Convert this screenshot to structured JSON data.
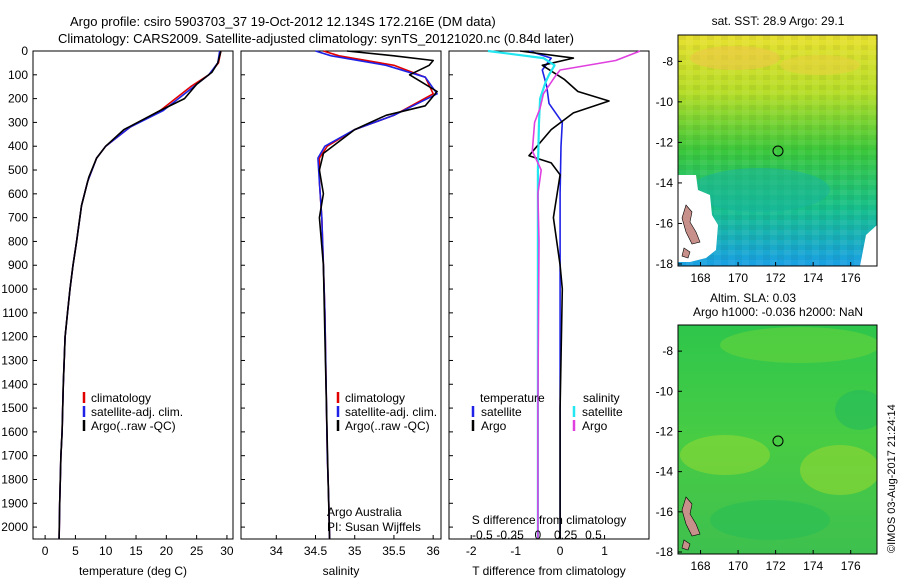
{
  "header": {
    "title_line1": "Argo profile: csiro 5903703_37 19-Oct-2012 12.134S 172.216E (DM data)",
    "title_line2": "Climatology: CARS2009. Satellite-adjusted climatology: synTS_20121020.nc (0.84d later)"
  },
  "colors": {
    "climatology": "#e00000",
    "satellite": "#1e22e6",
    "argo": "#000000",
    "sat_salinity": "#22e6f0",
    "argo_salinity": "#e040e0"
  },
  "depth_axis": {
    "ticks": [
      0,
      100,
      200,
      300,
      400,
      500,
      600,
      700,
      800,
      900,
      1000,
      1100,
      1200,
      1300,
      1400,
      1500,
      1600,
      1700,
      1800,
      1900,
      2000
    ],
    "range": [
      0,
      2050
    ]
  },
  "legend": {
    "items": [
      {
        "key": "climatology",
        "label": "climatology"
      },
      {
        "key": "satellite",
        "label": "satellite-adj. clim."
      },
      {
        "key": "argo",
        "label": "Argo(..raw -QC)"
      }
    ]
  },
  "credits": {
    "line1": "Argo Australia",
    "line2": "PI: Susan Wijffels"
  },
  "diff_legend": {
    "temperature": "temperature",
    "salinity": "salinity",
    "satellite": "satellite",
    "argo": "Argo"
  },
  "map1": {
    "title": "sat. SST: 28.9 Argo: 29.1",
    "yticks": [
      -8,
      -10,
      -12,
      -14,
      -16,
      -18
    ],
    "xticks": [
      168,
      170,
      172,
      174,
      176
    ]
  },
  "map2": {
    "title_line1": "Altim. SLA: 0.03",
    "title_line2": "Argo h1000: -0.036 h2000: NaN",
    "yticks": [
      -8,
      -10,
      -12,
      -14,
      -16,
      -18
    ],
    "xticks": [
      168,
      170,
      172,
      174,
      176
    ]
  },
  "side_label": "©IMOS 03-Aug-2017 21:24:14",
  "chart_data": [
    {
      "type": "line",
      "xlabel": "temperature (deg C)",
      "ylabel": "",
      "xlim": [
        -2,
        31
      ],
      "ylim": [
        2050,
        0
      ],
      "xticks": [
        0,
        5,
        10,
        15,
        20,
        25,
        30
      ],
      "series": [
        {
          "name": "climatology",
          "x": [
            29,
            28.6,
            27,
            24,
            19,
            14,
            10,
            8.5,
            7,
            6,
            5.2,
            4.6,
            4.1,
            3.7,
            3.3,
            3.0,
            2.8,
            2.6,
            2.5,
            2.4,
            2.3
          ],
          "y": [
            0,
            50,
            100,
            150,
            250,
            320,
            400,
            450,
            550,
            650,
            800,
            900,
            1000,
            1100,
            1200,
            1400,
            1600,
            1700,
            1800,
            1900,
            2050
          ]
        },
        {
          "name": "satellite-adj. clim.",
          "x": [
            28.8,
            28.5,
            27,
            24.5,
            19.5,
            14,
            10,
            8.5,
            7,
            6,
            5.2,
            4.6,
            4.1,
            3.7,
            3.3,
            3.0,
            2.8,
            2.6,
            2.5,
            2.4,
            2.3
          ],
          "y": [
            0,
            50,
            100,
            150,
            250,
            320,
            400,
            450,
            550,
            650,
            800,
            900,
            1000,
            1100,
            1200,
            1400,
            1600,
            1700,
            1800,
            1900,
            2050
          ]
        },
        {
          "name": "Argo(..raw -QC)",
          "x": [
            29,
            28.5,
            27.5,
            25,
            23,
            19,
            13,
            10,
            8.5,
            7.2,
            6,
            5.2,
            4.6,
            4.1,
            3.7,
            3.3,
            3.0,
            2.8,
            2.6,
            2.5,
            2.4,
            2.3
          ],
          "y": [
            0,
            50,
            90,
            140,
            200,
            250,
            330,
            400,
            450,
            530,
            650,
            800,
            900,
            1000,
            1100,
            1200,
            1400,
            1600,
            1700,
            1800,
            1900,
            2050
          ]
        }
      ]
    },
    {
      "type": "line",
      "xlabel": "salinity",
      "ylabel": "",
      "xlim": [
        33.55,
        36.1
      ],
      "ylim": [
        2050,
        0
      ],
      "xticks": [
        34,
        34.5,
        35,
        35.5,
        36
      ],
      "series": [
        {
          "name": "climatology",
          "x": [
            34.6,
            34.8,
            35.5,
            35.9,
            36.0,
            35.5,
            35.0,
            34.65,
            34.55,
            34.55,
            34.58,
            34.6,
            34.62,
            34.63,
            34.64,
            34.65,
            34.66,
            34.67,
            34.68
          ],
          "y": [
            0,
            20,
            60,
            110,
            180,
            270,
            330,
            400,
            450,
            550,
            700,
            900,
            1100,
            1300,
            1500,
            1700,
            1800,
            1900,
            2050
          ]
        },
        {
          "name": "satellite-adj. clim.",
          "x": [
            34.5,
            34.7,
            35.4,
            35.9,
            36.05,
            35.5,
            35.0,
            34.62,
            34.53,
            34.55,
            34.58,
            34.6,
            34.62,
            34.63,
            34.64,
            34.65,
            34.66,
            34.67,
            34.68
          ],
          "y": [
            0,
            20,
            60,
            110,
            180,
            270,
            330,
            400,
            450,
            550,
            700,
            900,
            1100,
            1300,
            1500,
            1700,
            1800,
            1900,
            2050
          ]
        },
        {
          "name": "Argo(..raw -QC)",
          "x": [
            34.9,
            35.5,
            36.0,
            35.95,
            35.7,
            35.85,
            36.05,
            35.9,
            35.4,
            35.0,
            34.6,
            34.55,
            34.6,
            34.55,
            34.6,
            34.62,
            34.64,
            34.66,
            34.68
          ],
          "y": [
            0,
            20,
            40,
            60,
            100,
            130,
            170,
            230,
            270,
            330,
            430,
            500,
            600,
            700,
            900,
            1200,
            1500,
            1800,
            2050
          ]
        }
      ]
    },
    {
      "type": "line",
      "xlabel": "T difference from climatology",
      "x2label": "S difference from climatology",
      "xlim": [
        -2.5,
        2.0
      ],
      "x2lim": [
        -0.8,
        1.0
      ],
      "ylim": [
        2050,
        0
      ],
      "xticks": [
        -2,
        -1,
        0,
        1
      ],
      "x2ticks": [
        -0.5,
        -0.25,
        0,
        0.25,
        0.5
      ],
      "series": [
        {
          "name": "temperature satellite",
          "axis": "T",
          "x": [
            -0.7,
            -0.2,
            -0.4,
            -0.3,
            -0.25,
            0.05,
            0.02,
            0,
            0,
            0,
            0,
            0
          ],
          "y": [
            0,
            30,
            80,
            150,
            220,
            300,
            400,
            600,
            900,
            1200,
            1600,
            2050
          ]
        },
        {
          "name": "temperature Argo",
          "axis": "T",
          "x": [
            -0.9,
            0.3,
            -0.4,
            0.1,
            0.4,
            1.1,
            0.3,
            -0.2,
            -0.7,
            -0.2,
            0,
            -0.15,
            0,
            0.05,
            0,
            0
          ],
          "y": [
            0,
            30,
            60,
            120,
            170,
            210,
            260,
            330,
            440,
            470,
            520,
            700,
            900,
            1000,
            1500,
            2050
          ]
        },
        {
          "name": "salinity satellite",
          "axis": "S",
          "x": [
            -0.45,
            0.05,
            0.15,
            0.1,
            0.07,
            0.02,
            0.01,
            0,
            0,
            0,
            0
          ],
          "y": [
            0,
            30,
            60,
            100,
            130,
            200,
            300,
            500,
            800,
            1500,
            2050
          ]
        },
        {
          "name": "salinity Argo",
          "axis": "S",
          "x": [
            0.92,
            0.7,
            0.2,
            0.15,
            0.05,
            0.02,
            -0.03,
            -0.05,
            0.03,
            0,
            0.01,
            0,
            0
          ],
          "y": [
            0,
            40,
            80,
            110,
            180,
            240,
            300,
            420,
            500,
            600,
            800,
            1500,
            2050
          ]
        }
      ]
    }
  ]
}
